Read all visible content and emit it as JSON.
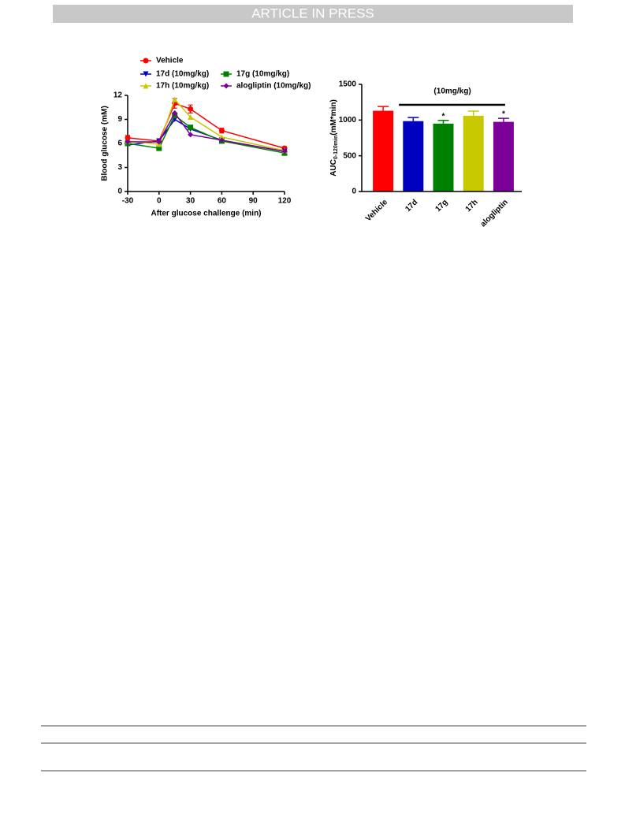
{
  "header": "ARTICLE IN PRESS",
  "chart_data": [
    {
      "type": "line",
      "xlabel": "After glucose challenge (min)",
      "ylabel": "Blood glucose (mM)",
      "x": [
        -30,
        0,
        15,
        30,
        60,
        120
      ],
      "xlim": [
        -30,
        120
      ],
      "xticks": [
        -30,
        0,
        30,
        60,
        90,
        120
      ],
      "ylim": [
        0,
        12
      ],
      "yticks": [
        0,
        3,
        6,
        9,
        12
      ],
      "series": [
        {
          "name": "Vehicle",
          "color": "#ff0000",
          "marker": "circle",
          "values": [
            6.7,
            6.3,
            11.0,
            10.3,
            7.6,
            5.4
          ],
          "errors": [
            0.3,
            0.2,
            0.6,
            0.5,
            0.3,
            0.2
          ]
        },
        {
          "name": "17d (10mg/kg)",
          "color": "#0000c0",
          "marker": "triangle-down",
          "values": [
            5.8,
            6.3,
            9.0,
            7.8,
            6.4,
            5.0
          ]
        },
        {
          "name": "17g (10mg/kg)",
          "color": "#008000",
          "marker": "square",
          "values": [
            6.0,
            5.4,
            9.5,
            8.0,
            6.3,
            4.8
          ]
        },
        {
          "name": "17h (10mg/kg)",
          "color": "#c8c800",
          "marker": "triangle-up",
          "values": [
            6.3,
            5.9,
            11.5,
            9.3,
            6.8,
            5.1
          ]
        },
        {
          "name": "alogliptin (10mg/kg)",
          "color": "#7a0099",
          "marker": "diamond",
          "values": [
            6.2,
            6.2,
            9.8,
            7.1,
            6.4,
            5.0
          ]
        }
      ]
    },
    {
      "type": "bar",
      "ylabel": {
        "main": "AUC",
        "sub": "0-120min",
        "unit": "(mM*min)"
      },
      "annotation": "(10mg/kg)",
      "categories": [
        "Vehicle",
        "17d",
        "17g",
        "17h",
        "alogliptin"
      ],
      "values": [
        1130,
        985,
        950,
        1060,
        975
      ],
      "errors": [
        60,
        50,
        45,
        65,
        50
      ],
      "significance": [
        null,
        null,
        "*",
        null,
        "*"
      ],
      "colors": [
        "#ff0000",
        "#0000c0",
        "#008000",
        "#c8c800",
        "#7a0099"
      ],
      "ylim": [
        0,
        1500
      ],
      "yticks": [
        0,
        500,
        1000,
        1500
      ]
    }
  ]
}
